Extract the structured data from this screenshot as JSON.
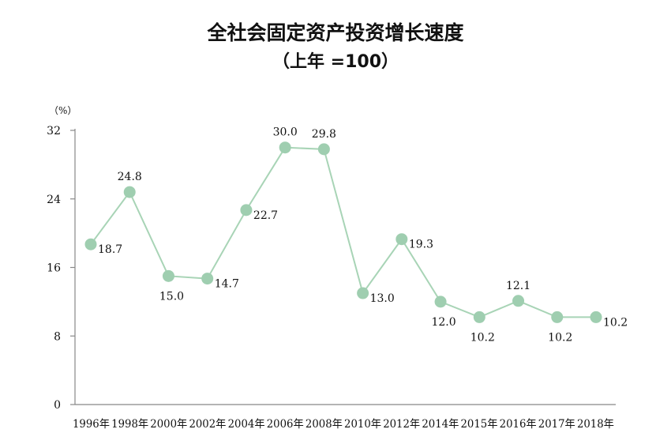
{
  "chart_data": {
    "type": "line",
    "title": "全社会固定资产投资增长速度",
    "subtitle": "（上年 =100）",
    "ylabel": "（%）",
    "xlabel": "",
    "categories": [
      "1996年",
      "1998年",
      "2000年",
      "2002年",
      "2004年",
      "2006年",
      "2008年",
      "2010年",
      "2012年",
      "2014年",
      "2015年",
      "2016年",
      "2017年",
      "2018年"
    ],
    "values": [
      18.7,
      24.8,
      15.0,
      14.7,
      22.7,
      30.0,
      29.8,
      13.0,
      19.3,
      12.0,
      10.2,
      12.1,
      10.2,
      10.2
    ],
    "data_labels": [
      "18.7",
      "24.8",
      "15.0",
      "14.7",
      "22.7",
      "30.0",
      "29.8",
      "13.0",
      "19.3",
      "12.0",
      "10.2",
      "12.1",
      "10.2",
      "10.2"
    ],
    "label_positions": [
      "right",
      "above",
      "below",
      "right",
      "right",
      "above",
      "above",
      "right",
      "right",
      "below",
      "below",
      "above",
      "below",
      "right"
    ],
    "yticks": [
      0,
      8,
      16,
      24,
      32
    ],
    "ytick_labels": [
      "0",
      "8",
      "16",
      "24",
      "32"
    ],
    "ylim": [
      0,
      32
    ],
    "grid": false,
    "legend": "none",
    "line_color": "#a8d4b6",
    "marker_color": "#9fceb0",
    "axis_color": "#888888"
  }
}
